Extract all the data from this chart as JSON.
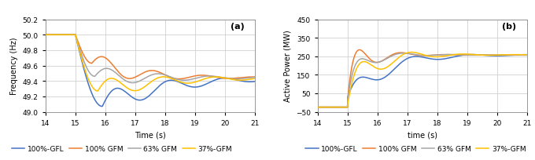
{
  "colors": {
    "gfl": "#4472C4",
    "gfm100": "#ED7D31",
    "gfm63": "#A5A5A5",
    "gfm37": "#FFC000"
  },
  "legend_labels": [
    "100%-GFL",
    "100% GFM",
    "63% GFM",
    "37%-GFM"
  ],
  "plot_a": {
    "title": "(a)",
    "xlabel": "Time (s)",
    "ylabel": "Frequency (Hz)",
    "xlim": [
      14,
      21
    ],
    "ylim": [
      49.0,
      50.2
    ],
    "yticks": [
      49.0,
      49.2,
      49.4,
      49.6,
      49.8,
      50.0,
      50.2
    ],
    "xticks": [
      14,
      15,
      16,
      17,
      18,
      19,
      20,
      21
    ]
  },
  "plot_b": {
    "title": "(b)",
    "xlabel": "time (s)",
    "ylabel": "Active Power (MW)",
    "xlim": [
      14,
      21
    ],
    "ylim": [
      -50,
      450
    ],
    "yticks": [
      -50,
      50,
      150,
      250,
      350,
      450
    ],
    "xticks": [
      14,
      15,
      16,
      17,
      18,
      19,
      20,
      21
    ]
  },
  "background_color": "#FFFFFF",
  "grid_color": "#C8C8C8"
}
